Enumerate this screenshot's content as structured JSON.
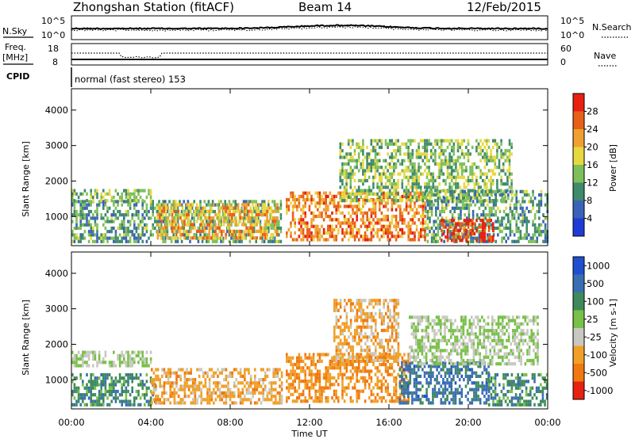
{
  "header": {
    "station": "Zhongshan Station (fitACF)",
    "beam": "Beam 14",
    "date": "12/Feb/2015"
  },
  "top_panel": {
    "left_label": "N.Sky",
    "right_label": "N.Search",
    "left_ticks": [
      "10^5",
      "10^0"
    ],
    "right_ticks": [
      "10^5",
      "10^0"
    ]
  },
  "freq_panel": {
    "left_label_1": "Freq.",
    "left_label_2": "[MHz]",
    "right_label": "Nave",
    "left_ticks": [
      "18",
      "8"
    ],
    "right_ticks": [
      "60",
      "0"
    ]
  },
  "cpid": {
    "label": "CPID",
    "text": "normal (fast stereo) 153"
  },
  "x_axis": {
    "label": "Time UT",
    "ticks": [
      "00:00",
      "04:00",
      "08:00",
      "12:00",
      "16:00",
      "20:00",
      "00:00"
    ]
  },
  "chart_data": [
    {
      "type": "heatmap",
      "quantity": "Power",
      "ylabel": "Slant Range [km]",
      "xlabel": "Time UT",
      "yticks": [
        1000,
        2000,
        3000,
        4000
      ],
      "ylim": [
        180,
        4600
      ],
      "xlim_hours": [
        0,
        24
      ],
      "colorbar_label": "Power [dB]",
      "colorbar_ticks": [
        "4",
        "8",
        "12",
        "16",
        "20",
        "24",
        "28"
      ],
      "colorbar_colors": [
        "#1f3bd6",
        "#3a62b8",
        "#3f8a6a",
        "#7fbf5a",
        "#e8d840",
        "#f0a030",
        "#e86018",
        "#e82010"
      ],
      "echo_regions": [
        {
          "t0": 0.0,
          "t1": 10.6,
          "r0": 250,
          "r1": 1450,
          "level": 0.35
        },
        {
          "t0": 0.0,
          "t1": 4.0,
          "r0": 1400,
          "r1": 1750,
          "level": 0.45
        },
        {
          "t0": 4.3,
          "t1": 10.4,
          "r0": 350,
          "r1": 1350,
          "level": 0.65
        },
        {
          "t0": 10.8,
          "t1": 17.8,
          "r0": 300,
          "r1": 1700,
          "level": 0.75
        },
        {
          "t0": 13.5,
          "t1": 22.2,
          "r0": 1400,
          "r1": 3100,
          "level": 0.45
        },
        {
          "t0": 17.8,
          "t1": 24.0,
          "r0": 250,
          "r1": 1700,
          "level": 0.35
        },
        {
          "t0": 18.6,
          "t1": 21.2,
          "r0": 280,
          "r1": 900,
          "level": 0.9
        }
      ]
    },
    {
      "type": "heatmap",
      "quantity": "Velocity",
      "ylabel": "Slant Range [km]",
      "xlabel": "Time UT",
      "yticks": [
        1000,
        2000,
        3000,
        4000
      ],
      "ylim": [
        180,
        4600
      ],
      "xlim_hours": [
        0,
        24
      ],
      "colorbar_label": "Velocity [m s-1]",
      "colorbar_ticks": [
        "1000",
        "500",
        "100",
        "25",
        "-25",
        "-100",
        "-500",
        "-1000"
      ],
      "colorbar_colors": [
        "#2050d0",
        "#3a6eb0",
        "#3f8a5a",
        "#78c048",
        "#c8c8c0",
        "#f0a028",
        "#f07810",
        "#e82010"
      ],
      "echo_regions": [
        {
          "t0": 0.0,
          "t1": 4.2,
          "r0": 250,
          "r1": 1100,
          "vel": 0.3
        },
        {
          "t0": 0.0,
          "t1": 4.0,
          "r0": 1350,
          "r1": 1750,
          "vel": 0.5
        },
        {
          "t0": 4.0,
          "t1": 10.6,
          "r0": 300,
          "r1": 1300,
          "vel": 0.68
        },
        {
          "t0": 10.8,
          "t1": 17.0,
          "r0": 350,
          "r1": 1700,
          "vel": 0.74
        },
        {
          "t0": 13.2,
          "t1": 16.5,
          "r0": 1500,
          "r1": 3200,
          "vel": 0.68
        },
        {
          "t0": 16.5,
          "t1": 21.0,
          "r0": 300,
          "r1": 1500,
          "vel": 0.22
        },
        {
          "t0": 17.0,
          "t1": 23.5,
          "r0": 1400,
          "r1": 2800,
          "vel": 0.5
        },
        {
          "t0": 21.0,
          "t1": 24.0,
          "r0": 250,
          "r1": 1100,
          "vel": 0.3
        }
      ]
    }
  ]
}
